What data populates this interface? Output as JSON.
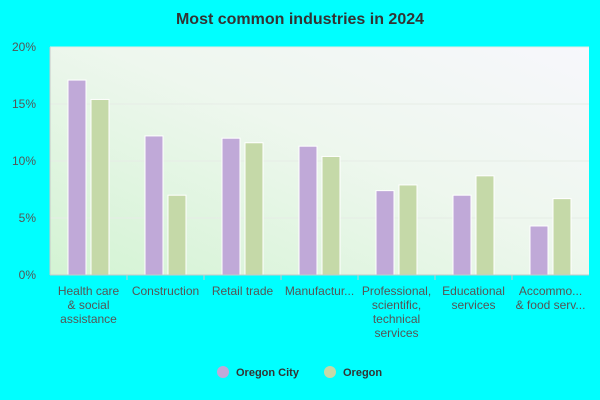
{
  "chart_data": {
    "type": "bar",
    "title": "Most common industries in 2024",
    "categories": [
      "Health care & social assistance",
      "Construction",
      "Retail trade",
      "Manufacturing",
      "Professional, scientific, technical services",
      "Educational services",
      "Accommodation & food services"
    ],
    "category_labels": [
      [
        "Health care",
        "& social",
        "assistance"
      ],
      [
        "Construction"
      ],
      [
        "Retail trade"
      ],
      [
        "Manufactur..."
      ],
      [
        "Professional,",
        "scientific,",
        "technical",
        "services"
      ],
      [
        "Educational",
        "services"
      ],
      [
        "Accommo...",
        "& food serv..."
      ]
    ],
    "series": [
      {
        "name": "Oregon City",
        "color": "#c0a9d8",
        "values": [
          17.1,
          12.2,
          12.0,
          11.3,
          7.4,
          7.0,
          4.3
        ]
      },
      {
        "name": "Oregon",
        "color": "#c5d9a8",
        "values": [
          15.4,
          7.0,
          11.6,
          10.4,
          7.9,
          8.7,
          6.7
        ]
      }
    ],
    "ylim": [
      0,
      20
    ],
    "yticks": [
      0,
      5,
      10,
      15,
      20
    ],
    "ytick_labels": [
      "0%",
      "5%",
      "10%",
      "15%",
      "20%"
    ],
    "unit": "%",
    "grid": true,
    "legend_position": "bottom"
  }
}
